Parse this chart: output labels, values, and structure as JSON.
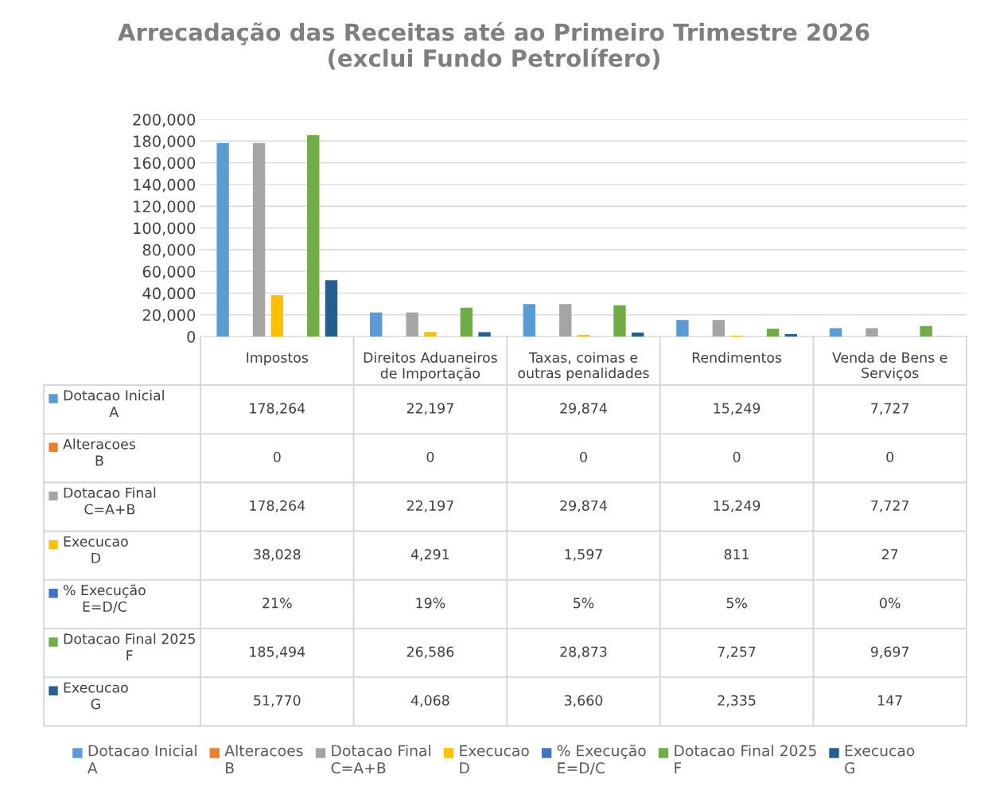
{
  "chart_data": {
    "type": "bar",
    "title": "Arrecadação das Receitas até ao Primeiro Trimestre 2026\n(exclui Fundo Petrolífero)",
    "categories": [
      "Impostos",
      "Direitos Aduaneiros\nde Importação",
      "Taxas, coimas e\noutras penalidades",
      "Rendimentos",
      "Venda de Bens e\nServiços"
    ],
    "series": [
      {
        "name": "Dotacao Inicial\nA",
        "color": "#5b9bd5",
        "values": [
          178264,
          22197,
          29874,
          15249,
          7727
        ],
        "value_labels": [
          "178,264",
          "22,197",
          "29,874",
          "15,249",
          "7,727"
        ]
      },
      {
        "name": "Alteracoes\nB",
        "color": "#ed7d31",
        "values": [
          0,
          0,
          0,
          0,
          0
        ],
        "value_labels": [
          "0",
          "0",
          "0",
          "0",
          "0"
        ]
      },
      {
        "name": "Dotacao Final\nC=A+B",
        "color": "#a5a5a5",
        "values": [
          178264,
          22197,
          29874,
          15249,
          7727
        ],
        "value_labels": [
          "178,264",
          "22,197",
          "29,874",
          "15,249",
          "7,727"
        ]
      },
      {
        "name": "Execucao\nD",
        "color": "#ffc000",
        "values": [
          38028,
          4291,
          1597,
          811,
          27
        ],
        "value_labels": [
          "38,028",
          "4,291",
          "1,597",
          "811",
          "27"
        ]
      },
      {
        "name": "% Execução\nE=D/C",
        "color": "#4472c4",
        "values": [
          0.21,
          0.19,
          0.05,
          0.05,
          0
        ],
        "value_labels": [
          "21%",
          "19%",
          "5%",
          "5%",
          "0%"
        ]
      },
      {
        "name": "Dotacao Final 2025\nF",
        "color": "#70ad47",
        "values": [
          185494,
          26586,
          28873,
          7257,
          9697
        ],
        "value_labels": [
          "185,494",
          "26,586",
          "28,873",
          "7,257",
          "9,697"
        ]
      },
      {
        "name": "Execucao\nG",
        "color": "#255e91",
        "values": [
          51770,
          4068,
          3660,
          2335,
          147
        ],
        "value_labels": [
          "51,770",
          "4,068",
          "3,660",
          "2,335",
          "147"
        ]
      }
    ],
    "ylim": [
      0,
      200000
    ],
    "yticks": [
      {
        "value": 0,
        "label": "0"
      },
      {
        "value": 20000,
        "label": "20,000"
      },
      {
        "value": 40000,
        "label": "40,000"
      },
      {
        "value": 60000,
        "label": "60,000"
      },
      {
        "value": 80000,
        "label": "80,000"
      },
      {
        "value": 100000,
        "label": "100,000"
      },
      {
        "value": 120000,
        "label": "120,000"
      },
      {
        "value": 140000,
        "label": "140,000"
      },
      {
        "value": 160000,
        "label": "160,000"
      },
      {
        "value": 180000,
        "label": "180,000"
      },
      {
        "value": 200000,
        "label": "200,000"
      }
    ],
    "grid": "y",
    "legend": "bottom"
  }
}
